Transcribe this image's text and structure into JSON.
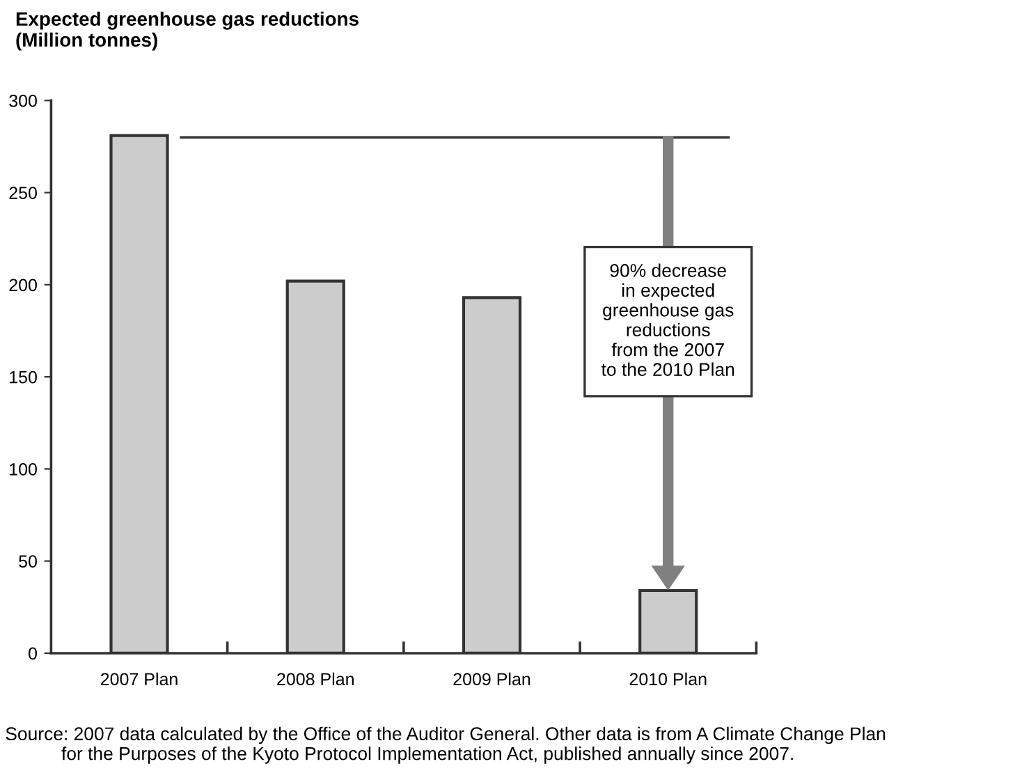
{
  "chart_data": {
    "type": "bar",
    "title": "Expected greenhouse gas reductions\n(Million tonnes)",
    "categories": [
      "2007 Plan",
      "2008 Plan",
      "2009 Plan",
      "2010 Plan"
    ],
    "values": [
      281,
      202,
      193,
      34
    ],
    "color": "#cccccc",
    "ylim": [
      0,
      300
    ],
    "yticks": [
      0,
      50,
      100,
      150,
      200,
      250,
      300
    ],
    "grid": false,
    "ref_lines": [
      {
        "axis": "y",
        "value": 280,
        "label": null,
        "color": "#333333"
      }
    ],
    "annotations": [
      "90% decrease\nin expected\ngreenhouse gas\nreductions\nfrom the 2007\nto the 2010 Plan",
      "Source: 2007 data calculated by the Office of the Auditor General. Other data is from A Climate Change Plan\n           for the Purposes of the Kyoto Protocol Implementation Act, published annually since 2007."
    ]
  }
}
